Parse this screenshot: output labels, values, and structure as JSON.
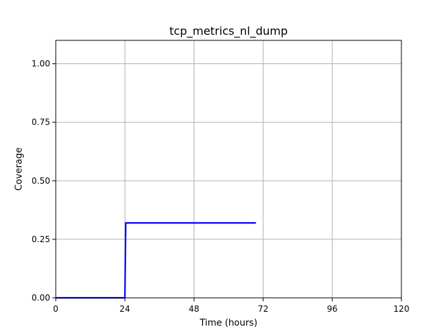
{
  "chart_data": {
    "type": "line",
    "title": "tcp_metrics_nl_dump",
    "xlabel": "Time (hours)",
    "ylabel": "Coverage",
    "xlim": [
      0,
      120
    ],
    "ylim": [
      0,
      1.1
    ],
    "xticks": [
      0,
      24,
      48,
      72,
      96,
      120
    ],
    "yticks": [
      0.0,
      0.25,
      0.5,
      0.75,
      1.0
    ],
    "xtick_labels": [
      "0",
      "24",
      "48",
      "72",
      "96",
      "120"
    ],
    "ytick_labels": [
      "0.00",
      "0.25",
      "0.50",
      "0.75",
      "1.00"
    ],
    "grid": true,
    "series": [
      {
        "name": "coverage",
        "color": "#0000ff",
        "x": [
          0,
          24,
          24.3,
          69.5
        ],
        "y": [
          0.0,
          0.0,
          0.32,
          0.32
        ]
      }
    ]
  }
}
